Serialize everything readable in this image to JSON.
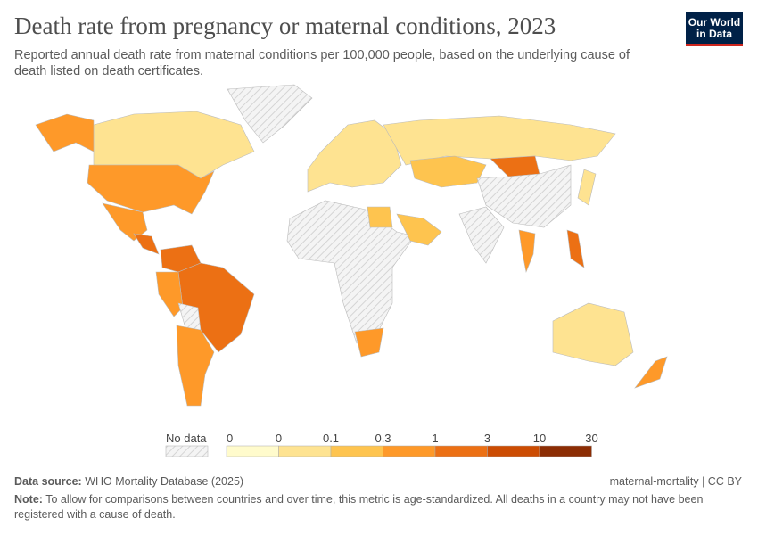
{
  "header": {
    "title": "Death rate from pregnancy or maternal conditions, 2023",
    "subtitle": "Reported annual death rate from maternal conditions per 100,000 people, based on the underlying cause of death listed on death certificates.",
    "logo": "Our World in Data"
  },
  "legend": {
    "no_data_label": "No data",
    "ticks": [
      "0",
      "0",
      "0.1",
      "0.3",
      "1",
      "3",
      "10",
      "30"
    ],
    "colors": [
      "#fffbcc",
      "#fee391",
      "#fec44f",
      "#fe9929",
      "#ec7014",
      "#cc4c02",
      "#8c2d04"
    ],
    "no_data_color": "#e8e8e8"
  },
  "map_regions": [
    {
      "name": "Canada",
      "bin": 1
    },
    {
      "name": "United States",
      "bin": 3
    },
    {
      "name": "Alaska",
      "bin": 3
    },
    {
      "name": "Greenland",
      "bin": null
    },
    {
      "name": "Mexico",
      "bin": 3
    },
    {
      "name": "Central America",
      "bin": 4
    },
    {
      "name": "Colombia/Venezuela",
      "bin": 4
    },
    {
      "name": "Brazil",
      "bin": 4
    },
    {
      "name": "Peru",
      "bin": 3
    },
    {
      "name": "Bolivia",
      "bin": null
    },
    {
      "name": "Argentina/Chile",
      "bin": 3
    },
    {
      "name": "Europe",
      "bin": 1
    },
    {
      "name": "Russia",
      "bin": 1
    },
    {
      "name": "Kazakhstan",
      "bin": 2
    },
    {
      "name": "Mongolia",
      "bin": 4
    },
    {
      "name": "China",
      "bin": null
    },
    {
      "name": "India",
      "bin": null
    },
    {
      "name": "Africa",
      "bin": null
    },
    {
      "name": "Egypt",
      "bin": 2
    },
    {
      "name": "Saudi Arabia",
      "bin": 2
    },
    {
      "name": "South Africa",
      "bin": 3
    },
    {
      "name": "Thailand",
      "bin": 3
    },
    {
      "name": "Philippines",
      "bin": 4
    },
    {
      "name": "Japan",
      "bin": 1
    },
    {
      "name": "Australia",
      "bin": 1
    },
    {
      "name": "New Zealand",
      "bin": 3
    }
  ],
  "footer": {
    "source_label": "Data source:",
    "source": "WHO Mortality Database (2025)",
    "slug": "maternal-mortality | CC BY",
    "note_label": "Note:",
    "note": "To allow for comparisons between countries and over time, this metric is age-standardized. All deaths in a country may not have been registered with a cause of death."
  }
}
